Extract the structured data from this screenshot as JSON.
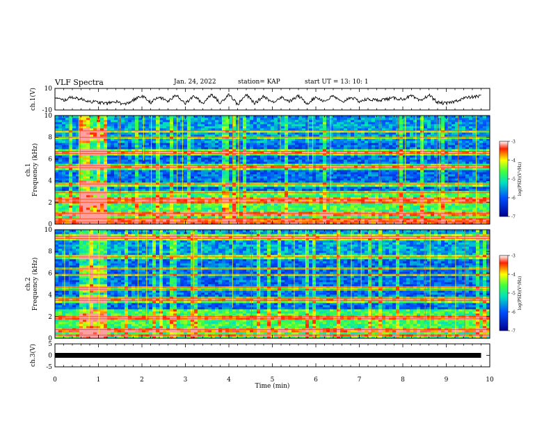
{
  "header": {
    "title": "VLF Spectra",
    "date": "Jan. 24, 2022",
    "station": "station= KAP",
    "start": "start  UT =   13: 10: 1"
  },
  "chart_data": [
    {
      "type": "line",
      "id": "ch1-waveform",
      "ylabel": "ch.1(V)",
      "ylim": [
        -10,
        10
      ],
      "yticks": [
        "10",
        "-10"
      ],
      "xlim": [
        0,
        10
      ],
      "description_of_series": "ch.1 voltage waveform",
      "x": [
        0,
        0.2,
        0.4,
        0.6,
        0.8,
        1.0,
        1.2,
        1.4,
        1.6,
        1.8,
        2.0,
        2.2,
        2.4,
        2.6,
        2.8,
        3.0,
        3.2,
        3.4,
        3.6,
        3.8,
        4.0,
        4.2,
        4.4,
        4.6,
        4.8,
        5.0,
        5.2,
        5.4,
        5.6,
        5.8,
        6.0,
        6.2,
        6.4,
        6.6,
        6.8,
        7.0,
        7.2,
        7.4,
        7.6,
        7.8,
        8.0,
        8.2,
        8.4,
        8.6,
        8.8,
        9.0,
        9.2,
        9.4,
        9.6,
        9.8
      ],
      "y": [
        1,
        -1,
        2,
        0,
        -2,
        -3,
        -4,
        -2,
        -5,
        -1,
        3,
        -3,
        2,
        -2,
        4,
        -4,
        3,
        -4,
        5,
        -4,
        5,
        -5,
        4,
        -4,
        3,
        -3,
        2,
        -2,
        3,
        -4,
        2,
        -2,
        3,
        -3,
        2,
        -2,
        0,
        -1,
        0,
        1,
        0,
        3,
        -2,
        4,
        -3,
        -4,
        -2,
        1,
        2,
        3
      ]
    },
    {
      "type": "heatmap",
      "id": "ch1-spectrogram",
      "ylabel": "ch.1\nFrequency (kHz)",
      "xlim": [
        0,
        10
      ],
      "ylim": [
        0,
        10
      ],
      "yticks": [
        "0",
        "2",
        "4",
        "6",
        "8",
        "10"
      ],
      "colorbar": {
        "label": "log(PSD)(V²/Hz)",
        "range": [
          -7,
          -3
        ],
        "ticks": [
          "-3",
          "-4",
          "-5",
          "-6",
          "-7"
        ]
      },
      "bands_khz": [
        0.2,
        0.5,
        1.0,
        2.0,
        2.3,
        2.9,
        3.7,
        5.2,
        5.4,
        6.5,
        6.7,
        8.0,
        8.6
      ],
      "burst_interval_min": [
        0.6,
        1.2
      ]
    },
    {
      "type": "heatmap",
      "id": "ch2-spectrogram",
      "ylabel": "ch.2\nFrequency (kHz)",
      "xlim": [
        0,
        10
      ],
      "ylim": [
        0,
        10
      ],
      "yticks": [
        "0",
        "2",
        "4",
        "6",
        "8",
        "10"
      ],
      "colorbar": {
        "label": "log(PSD)(V²/Hz)",
        "range": [
          -7,
          -3
        ],
        "ticks": [
          "-3",
          "-4",
          "-5",
          "-6",
          "-7"
        ]
      },
      "bands_khz": [
        0.3,
        0.8,
        1.8,
        2.0,
        3.5,
        3.7,
        4.5,
        4.7,
        5.9,
        6.4,
        7.5,
        9.2,
        9.4
      ],
      "burst_interval_min": [
        0.6,
        1.2
      ]
    },
    {
      "type": "line",
      "id": "ch3-waveform",
      "ylabel": "ch.3(V)",
      "ylim": [
        -5,
        5
      ],
      "yticks": [
        "5",
        "0",
        "-5"
      ],
      "xlim": [
        0,
        10
      ],
      "x": [
        0,
        9.8
      ],
      "y": [
        0,
        0
      ]
    }
  ],
  "xaxis": {
    "label": "Time (min)",
    "ticks": [
      "0",
      "1",
      "2",
      "3",
      "4",
      "5",
      "6",
      "7",
      "8",
      "9",
      "10"
    ]
  }
}
